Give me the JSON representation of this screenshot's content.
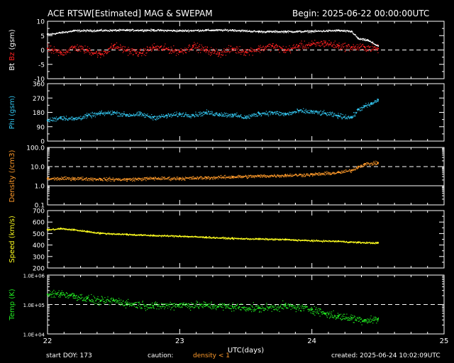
{
  "header": {
    "title": "ACE RTSW[Estimated] MAG & SWEPAM",
    "begin": "Begin: 2025-06-22 00:00:00UTC"
  },
  "footer": {
    "start_doy": "start DOY: 173",
    "caution_label": "caution:",
    "caution_value": "density < 1",
    "created": "created: 2025-06-24 10:02:09UTC"
  },
  "colors": {
    "background": "#000000",
    "axes": "#ffffff",
    "bt": "#ffffff",
    "bz": "#ff2020",
    "phi": "#33c6f0",
    "density": "#ff9a2a",
    "speed": "#ffff20",
    "temp": "#22ee22"
  },
  "chart_data": {
    "type": "scatter",
    "x_label": "UTC(days)",
    "x_ticks": [
      "22",
      "23",
      "24",
      "25"
    ],
    "x_range": [
      22,
      25
    ],
    "panels": [
      {
        "id": "mag",
        "ylabel": [
          "Bt",
          "Bz",
          "(gsm)"
        ],
        "ylabel_colors": [
          "#ffffff",
          "#ff2020",
          "#ffffff"
        ],
        "scale": "linear",
        "ylim": [
          -10,
          10
        ],
        "yticks": [
          "-10",
          "-5",
          "0",
          "5",
          "10"
        ],
        "dashed_ref": 0,
        "series": [
          {
            "name": "Bt",
            "color": "#ffffff",
            "x": [
              22.0,
              22.2,
              22.4,
              22.6,
              22.8,
              23.0,
              23.2,
              23.4,
              23.6,
              23.8,
              24.0,
              24.2,
              24.3,
              24.35,
              24.42,
              24.5
            ],
            "y": [
              5.5,
              6.8,
              6.9,
              7.0,
              7.0,
              6.8,
              7.0,
              7.0,
              6.5,
              6.5,
              6.6,
              6.9,
              6.5,
              4.0,
              3.5,
              1.5
            ]
          },
          {
            "name": "Bz",
            "color": "#ff2020",
            "x": [
              22.0,
              22.1,
              22.2,
              22.3,
              22.4,
              22.5,
              22.6,
              22.7,
              22.8,
              22.9,
              23.0,
              23.1,
              23.2,
              23.3,
              23.4,
              23.5,
              23.6,
              23.7,
              23.8,
              23.9,
              24.0,
              24.1,
              24.2,
              24.3,
              24.4,
              24.5
            ],
            "y": [
              0.5,
              -1.0,
              1.0,
              0.0,
              -1.5,
              1.5,
              0.0,
              -1.0,
              1.0,
              0.5,
              -0.5,
              1.5,
              0.0,
              -1.0,
              0.5,
              -0.5,
              0.5,
              1.5,
              0.0,
              1.5,
              2.0,
              2.5,
              1.5,
              1.0,
              1.0,
              0.5
            ]
          }
        ]
      },
      {
        "id": "phi",
        "ylabel": [
          "Phi (gsm)"
        ],
        "ylabel_colors": [
          "#33c6f0"
        ],
        "scale": "linear",
        "ylim": [
          0,
          360
        ],
        "yticks": [
          "0",
          "90",
          "180",
          "270",
          "360"
        ],
        "series": [
          {
            "name": "Phi",
            "color": "#33c6f0",
            "x": [
              22.0,
              22.1,
              22.2,
              22.3,
              22.4,
              22.5,
              22.6,
              22.7,
              22.8,
              22.9,
              23.0,
              23.1,
              23.2,
              23.3,
              23.4,
              23.5,
              23.6,
              23.7,
              23.8,
              23.9,
              24.0,
              24.1,
              24.2,
              24.3,
              24.35,
              24.4,
              24.45,
              24.5
            ],
            "y": [
              130,
              150,
              140,
              160,
              175,
              180,
              165,
              170,
              150,
              160,
              170,
              165,
              180,
              170,
              165,
              150,
              175,
              180,
              170,
              190,
              185,
              175,
              160,
              150,
              200,
              220,
              235,
              260
            ]
          }
        ]
      },
      {
        "id": "density",
        "ylabel": [
          "Density (/cm3)"
        ],
        "ylabel_colors": [
          "#ff9a2a"
        ],
        "scale": "log",
        "ylim": [
          0.1,
          100
        ],
        "yticks": [
          "0.1",
          "1.0",
          "10.0",
          "100.0"
        ],
        "dashed_ref": 10,
        "solid_ref": 1,
        "series": [
          {
            "name": "Density",
            "color": "#ff9a2a",
            "x": [
              22.0,
              22.2,
              22.4,
              22.6,
              22.8,
              23.0,
              23.2,
              23.4,
              23.6,
              23.8,
              24.0,
              24.2,
              24.3,
              24.35,
              24.4,
              24.5
            ],
            "y": [
              2.4,
              2.5,
              2.3,
              2.2,
              2.5,
              2.5,
              2.7,
              3.0,
              3.3,
              3.6,
              4.0,
              5.0,
              6.5,
              10,
              14,
              16
            ]
          }
        ]
      },
      {
        "id": "speed",
        "ylabel": [
          "Speed (km/s)"
        ],
        "ylabel_colors": [
          "#ffff20"
        ],
        "scale": "linear",
        "ylim": [
          200,
          700
        ],
        "yticks": [
          "200",
          "300",
          "400",
          "500",
          "600",
          "700"
        ],
        "series": [
          {
            "name": "Speed",
            "color": "#ffff20",
            "x": [
              22.0,
              22.1,
              22.2,
              22.3,
              22.4,
              22.6,
              22.8,
              23.0,
              23.2,
              23.4,
              23.6,
              23.8,
              24.0,
              24.2,
              24.35,
              24.5
            ],
            "y": [
              535,
              545,
              535,
              520,
              505,
              495,
              485,
              480,
              470,
              460,
              455,
              450,
              440,
              435,
              425,
              420
            ]
          }
        ]
      },
      {
        "id": "temp",
        "ylabel": [
          "Temp (K)"
        ],
        "ylabel_colors": [
          "#22ee22"
        ],
        "scale": "log",
        "ylim": [
          10000,
          1000000
        ],
        "yticks": [
          "1.0E+04",
          "1.0E+05",
          "1.0E+06"
        ],
        "dashed_ref": 100000,
        "series": [
          {
            "name": "Temp",
            "color": "#22ee22",
            "x": [
              22.0,
              22.1,
              22.2,
              22.3,
              22.4,
              22.5,
              22.6,
              22.8,
              23.0,
              23.2,
              23.4,
              23.6,
              23.8,
              24.0,
              24.1,
              24.2,
              24.3,
              24.4,
              24.5
            ],
            "y": [
              220000,
              240000,
              200000,
              160000,
              130000,
              140000,
              110000,
              90000,
              100000,
              95000,
              85000,
              75000,
              90000,
              70000,
              50000,
              40000,
              35000,
              30000,
              32000
            ]
          }
        ]
      }
    ]
  }
}
